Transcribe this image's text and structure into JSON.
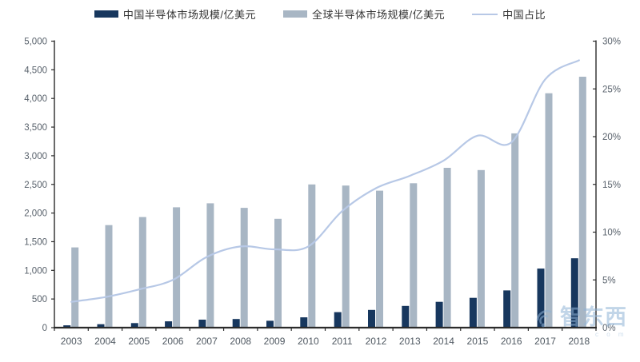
{
  "legend": [
    {
      "label": "中国半导体市场规模/亿美元",
      "marker": "bar",
      "color": "#17375e"
    },
    {
      "label": "全球半导体市场规模/亿美元",
      "marker": "bar",
      "color": "#a8b6c4"
    },
    {
      "label": "中国占比",
      "marker": "line",
      "color": "#b7c8e6"
    }
  ],
  "watermark": {
    "text": "智东西",
    "suffix": "c o m",
    "icon": "signal-arcs-icon"
  },
  "chart_data": {
    "type": "bar",
    "subtype": "grouped-bars-with-percent-line",
    "title": "",
    "categories": [
      "2003",
      "2004",
      "2005",
      "2006",
      "2007",
      "2008",
      "2009",
      "2010",
      "2011",
      "2012",
      "2013",
      "2014",
      "2015",
      "2016",
      "2017",
      "2018"
    ],
    "series": [
      {
        "name": "中国半导体市场规模/亿美元",
        "type": "bar",
        "axis": "left",
        "color": "#17375e",
        "values": [
          40,
          60,
          80,
          110,
          140,
          150,
          120,
          180,
          270,
          310,
          380,
          450,
          520,
          650,
          1030,
          1210
        ]
      },
      {
        "name": "全球半导体市场规模/亿美元",
        "type": "bar",
        "axis": "left",
        "color": "#a8b6c4",
        "values": [
          1400,
          1790,
          1930,
          2100,
          2170,
          2090,
          1900,
          2500,
          2480,
          2390,
          2520,
          2790,
          2750,
          3390,
          4090,
          4380
        ]
      },
      {
        "name": "中国占比",
        "type": "line",
        "axis": "right",
        "color": "#b7c8e6",
        "unit": "%",
        "values": [
          2.7,
          3.2,
          4.0,
          5.0,
          7.4,
          8.5,
          8.2,
          8.5,
          12.2,
          14.6,
          15.9,
          17.5,
          20.1,
          19.4,
          26.0,
          28.0
        ]
      }
    ],
    "left_axis": {
      "min": 0,
      "max": 5000,
      "step": 500,
      "tick_labels": [
        "0",
        "500",
        "1,000",
        "1,500",
        "2,000",
        "2,500",
        "3,000",
        "3,500",
        "4,000",
        "4,500",
        "5,000"
      ]
    },
    "right_axis": {
      "min": 0,
      "max": 30,
      "step": 5,
      "tick_labels": [
        "0%",
        "5%",
        "10%",
        "15%",
        "20%",
        "25%",
        "30%"
      ]
    },
    "grid": false,
    "legend_position": "top",
    "axis_color": "#2b2b2b",
    "label_color": "#58616b"
  }
}
